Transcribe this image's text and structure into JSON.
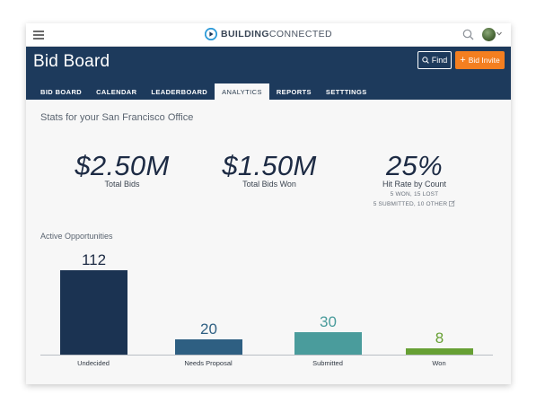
{
  "topbar": {
    "brand_bold": "BUILDING",
    "brand_light": "CONNECTED",
    "menu_icon": "hamburger-icon",
    "search_icon": "search-icon",
    "avatar_icon": "avatar"
  },
  "header": {
    "title": "Bid Board",
    "find_label": "Find",
    "bid_invite_label": "Bid Invite",
    "bid_invite_color": "#f47f20",
    "bg_color": "#1d3a5c"
  },
  "tabs": [
    {
      "label": "BID BOARD",
      "active": false
    },
    {
      "label": "CALENDAR",
      "active": false
    },
    {
      "label": "LEADERBOARD",
      "active": false
    },
    {
      "label": "ANALYTICS",
      "active": true
    },
    {
      "label": "REPORTS",
      "active": false
    },
    {
      "label": "SETTTINGS",
      "active": false
    }
  ],
  "stats": {
    "title": "Stats for your San Francisco Office",
    "total_bids": {
      "value": "$2.50M",
      "label": "Total Bids"
    },
    "total_won": {
      "value": "$1.50M",
      "label": "Total Bids Won"
    },
    "hit_rate": {
      "value": "25%",
      "label": "Hit Rate by Count",
      "line1": "5 WON, 15 LOST",
      "line2": "5 SUBMITTED, 10 OTHER"
    }
  },
  "opportunities": {
    "title": "Active Opportunities"
  },
  "chart_data": {
    "type": "bar",
    "categories": [
      "Undecided",
      "Needs Proposal",
      "Submitted",
      "Won"
    ],
    "values": [
      112,
      20,
      30,
      8
    ],
    "colors": [
      "#1b3352",
      "#2e5f82",
      "#4a9c9c",
      "#67a034"
    ],
    "label_colors": [
      "#1d2b44",
      "#2e5f82",
      "#4a9c9c",
      "#67a034"
    ]
  }
}
